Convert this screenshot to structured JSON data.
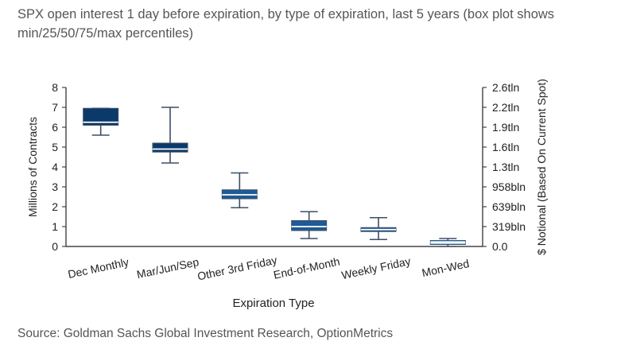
{
  "header": {
    "title": "SPX open interest 1 day before expiration, by type of expiration, last 5 years (box plot shows min/25/50/75/max percentiles)"
  },
  "footer": {
    "source": "Source: Goldman Sachs Global Investment Research, OptionMetrics"
  },
  "colors": {
    "box_dark": "#0b3a6a",
    "box_mid": "#1f5a96",
    "box_light": "#9ec9ea",
    "median_line": "#ffffff",
    "axis": "#222222",
    "whisker": "#3d4f66"
  },
  "chart_data": {
    "type": "box",
    "title": "SPX open interest 1 day before expiration, by type of expiration, last 5 years (box plot shows min/25/50/75/max percentiles)",
    "xlabel": "Expiration Type",
    "ylabel": "Millions of Contracts",
    "ylabel_right": "$ Notional (Based On Current Spot)",
    "ylim": [
      0,
      8
    ],
    "yticks": [
      "0",
      "1",
      "2",
      "3",
      "4",
      "5",
      "6",
      "7",
      "8"
    ],
    "yticks_right": [
      {
        "value": 0,
        "label": "0.0"
      },
      {
        "value": 1,
        "label": "319bln"
      },
      {
        "value": 2,
        "label": "639bln"
      },
      {
        "value": 3,
        "label": "958bln"
      },
      {
        "value": 4,
        "label": "1.3tln"
      },
      {
        "value": 5,
        "label": "1.6tln"
      },
      {
        "value": 6,
        "label": "1.9tln"
      },
      {
        "value": 7,
        "label": "2.2tln"
      },
      {
        "value": 8,
        "label": "2.6tln"
      }
    ],
    "categories": [
      "Dec Monthly",
      "Mar/Jun/Sep",
      "Other 3rd Friday",
      "End-of-Month",
      "Weekly Friday",
      "Mon-Wed"
    ],
    "boxes": [
      {
        "category": "Dec Monthly",
        "min": 5.6,
        "q1": 6.1,
        "median": 6.25,
        "q3": 6.95,
        "max": 6.95,
        "shade": "dark"
      },
      {
        "category": "Mar/Jun/Sep",
        "min": 4.2,
        "q1": 4.75,
        "median": 4.9,
        "q3": 5.2,
        "max": 7.0,
        "shade": "dark"
      },
      {
        "category": "Other 3rd Friday",
        "min": 1.95,
        "q1": 2.4,
        "median": 2.6,
        "q3": 2.85,
        "max": 3.7,
        "shade": "mid"
      },
      {
        "category": "End-of-Month",
        "min": 0.4,
        "q1": 0.8,
        "median": 1.0,
        "q3": 1.3,
        "max": 1.75,
        "shade": "mid"
      },
      {
        "category": "Weekly Friday",
        "min": 0.35,
        "q1": 0.75,
        "median": 0.85,
        "q3": 0.95,
        "max": 1.45,
        "shade": "mid"
      },
      {
        "category": "Mon-Wed",
        "min": 0.0,
        "q1": 0.1,
        "median": 0.2,
        "q3": 0.3,
        "max": 0.4,
        "shade": "light"
      }
    ]
  }
}
